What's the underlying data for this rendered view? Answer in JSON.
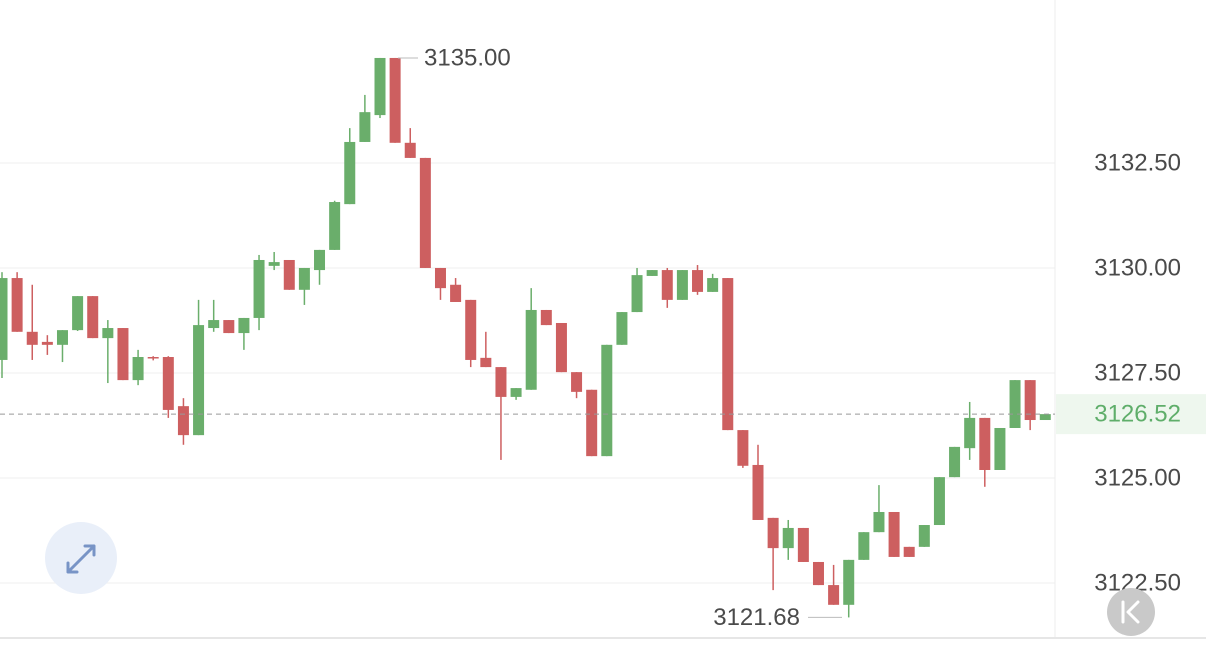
{
  "chart_data": {
    "type": "candlestick",
    "up_color": "#6aae6b",
    "down_color": "#cd5f60",
    "open": [
      3127.81,
      3129.76,
      3128.48,
      3128.24,
      3128.17,
      3128.52,
      3129.33,
      3128.33,
      3128.57,
      3127.33,
      3127.88,
      3127.88,
      3126.71,
      3126.02,
      3128.57,
      3128.76,
      3128.45,
      3128.81,
      3130.05,
      3130.19,
      3129.48,
      3129.95,
      3130.43,
      3131.52,
      3133.0,
      3133.64,
      3135.0,
      3132.98,
      3132.62,
      3130.0,
      3129.6,
      3129.24,
      3127.86,
      3127.64,
      3126.93,
      3127.1,
      3129.0,
      3128.69,
      3127.52,
      3127.1,
      3125.52,
      3128.17,
      3128.95,
      3129.81,
      3129.95,
      3129.24,
      3129.95,
      3129.43,
      3129.76,
      3126.14,
      3125.31,
      3124.05,
      3123.33,
      3123.81,
      3123.0,
      3122.45,
      3121.98,
      3123.05,
      3123.71,
      3124.19,
      3123.36,
      3123.36,
      3123.88,
      3125.02,
      3125.71,
      3126.43,
      3125.19,
      3126.19,
      3127.33,
      3126.38
    ],
    "high": [
      3129.9,
      3129.9,
      3129.6,
      3128.4,
      3128.52,
      3129.33,
      3129.33,
      3128.76,
      3128.57,
      3128.05,
      3127.9,
      3127.9,
      3126.9,
      3129.24,
      3129.24,
      3128.76,
      3128.81,
      3130.31,
      3130.38,
      3130.19,
      3130.0,
      3130.43,
      3131.6,
      3133.33,
      3134.12,
      3135.0,
      3135.0,
      3133.33,
      3132.62,
      3130.0,
      3129.76,
      3129.24,
      3128.48,
      3127.64,
      3127.14,
      3129.52,
      3129.0,
      3128.69,
      3127.52,
      3127.1,
      3128.17,
      3128.95,
      3130.0,
      3129.95,
      3130.0,
      3129.95,
      3130.07,
      3129.86,
      3129.76,
      3126.14,
      3125.79,
      3124.05,
      3124.0,
      3123.81,
      3123.0,
      3122.93,
      3123.05,
      3123.71,
      3124.83,
      3124.19,
      3123.36,
      3123.88,
      3125.02,
      3125.74,
      3126.81,
      3126.43,
      3126.19,
      3127.33,
      3127.33,
      3126.52
    ],
    "low": [
      3127.38,
      3128.48,
      3127.81,
      3127.93,
      3127.76,
      3128.5,
      3128.33,
      3127.26,
      3127.33,
      3127.21,
      3127.8,
      3126.43,
      3125.79,
      3126.02,
      3128.48,
      3128.45,
      3128.05,
      3128.52,
      3129.95,
      3129.48,
      3129.12,
      3129.6,
      3130.43,
      3131.52,
      3133.0,
      3133.57,
      3132.98,
      3132.62,
      3130.0,
      3129.24,
      3129.19,
      3127.64,
      3127.64,
      3125.43,
      3126.86,
      3127.1,
      3128.64,
      3127.52,
      3126.9,
      3125.52,
      3125.52,
      3128.17,
      3128.95,
      3129.81,
      3129.05,
      3129.24,
      3129.36,
      3129.43,
      3126.14,
      3125.24,
      3124.0,
      3122.33,
      3123.05,
      3123.0,
      3122.45,
      3121.98,
      3121.68,
      3123.05,
      3123.71,
      3123.12,
      3123.12,
      3123.36,
      3123.88,
      3125.02,
      3125.43,
      3124.79,
      3125.19,
      3126.19,
      3126.14,
      3126.38
    ],
    "close": [
      3129.76,
      3128.48,
      3128.17,
      3128.17,
      3128.52,
      3129.33,
      3128.33,
      3128.57,
      3127.33,
      3127.88,
      3127.86,
      3126.62,
      3126.02,
      3128.64,
      3128.76,
      3128.45,
      3128.81,
      3130.19,
      3130.14,
      3129.48,
      3130.0,
      3130.43,
      3131.57,
      3133.0,
      3133.71,
      3135.0,
      3132.98,
      3132.62,
      3130.0,
      3129.52,
      3129.19,
      3127.81,
      3127.64,
      3126.93,
      3127.14,
      3129.0,
      3128.64,
      3127.52,
      3127.05,
      3125.52,
      3128.17,
      3128.95,
      3129.83,
      3129.95,
      3129.24,
      3129.95,
      3129.43,
      3129.76,
      3126.14,
      3125.29,
      3124.0,
      3123.33,
      3123.81,
      3123.0,
      3122.45,
      3121.98,
      3123.05,
      3123.71,
      3124.19,
      3123.12,
      3123.12,
      3123.88,
      3125.02,
      3125.74,
      3126.43,
      3125.19,
      3126.19,
      3127.33,
      3126.38,
      3126.52
    ],
    "ylim": [
      3121.19,
      3136.38
    ],
    "yticks": [
      {
        "value": 3122.5,
        "label": "3122.50"
      },
      {
        "value": 3125,
        "label": "3125.00"
      },
      {
        "value": 3127.5,
        "label": "3127.50"
      },
      {
        "value": 3130,
        "label": "3130.00"
      },
      {
        "value": 3132.5,
        "label": "3132.50"
      }
    ],
    "grid": true,
    "max_label": {
      "value": 3135,
      "label": "3135.00"
    },
    "min_label": {
      "value": 3121.68,
      "label": "3121.68"
    },
    "last_price": {
      "value": 3126.52,
      "label": "3126.52",
      "color": "#5fae6a"
    }
  }
}
